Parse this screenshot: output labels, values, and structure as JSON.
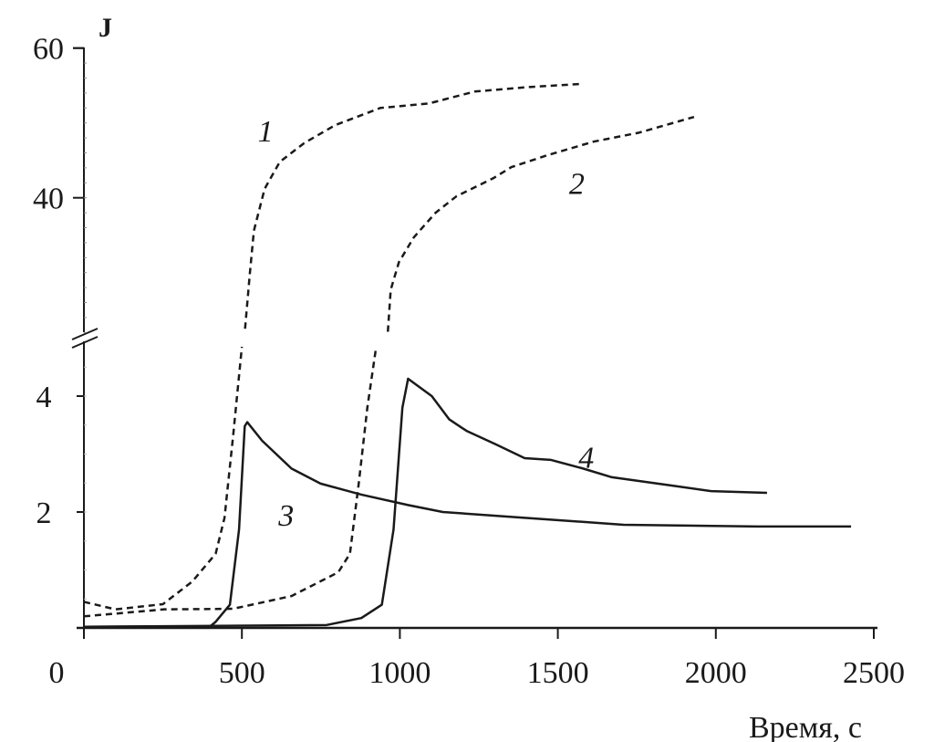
{
  "chart_data": {
    "type": "line",
    "title": "",
    "xlabel": "Время, с",
    "ylabel": "J",
    "xlim": [
      0,
      2500
    ],
    "ylim_lower": [
      0,
      5
    ],
    "ylim_upper": [
      21,
      60
    ],
    "y_axis_break": true,
    "grid": false,
    "x_ticks": [
      "0",
      "500",
      "1000",
      "1500",
      "2000",
      "2500"
    ],
    "x_tick_values": [
      0,
      500,
      1000,
      1500,
      2000,
      2500
    ],
    "y_ticks_lower": [
      "2",
      "4"
    ],
    "y_tick_values_lower": [
      2,
      4
    ],
    "y_ticks_upper": [
      "40",
      "60"
    ],
    "y_tick_values_upper": [
      40,
      60
    ],
    "series": [
      {
        "name": "1",
        "style": "dashed",
        "label_at": [
          575,
          49
        ],
        "x": [
          0,
          100,
          250,
          343,
          417,
          445,
          472,
          500,
          510,
          525,
          538,
          572,
          620,
          697,
          795,
          938,
          1092,
          1237,
          1410,
          1570
        ],
        "y": [
          0.45,
          0.32,
          0.41,
          0.8,
          1.28,
          1.9,
          3.3,
          4.85,
          22.5,
          29.8,
          35.6,
          41.2,
          44.8,
          47.3,
          49.7,
          52.0,
          52.6,
          54.2,
          54.8,
          55.2
        ]
      },
      {
        "name": "2",
        "style": "dashed",
        "label_at": [
          1560,
          42
        ],
        "x": [
          0,
          254,
          472,
          657,
          805,
          842,
          870,
          897,
          925,
          962,
          971,
          997,
          1044,
          1113,
          1179,
          1295,
          1353,
          1468,
          1613,
          1757,
          1931
        ],
        "y": [
          0.2,
          0.32,
          0.33,
          0.55,
          0.96,
          1.28,
          2.5,
          3.8,
          4.85,
          22.1,
          27.7,
          31.4,
          34.7,
          38.0,
          40.2,
          42.6,
          44.1,
          45.7,
          47.5,
          48.7,
          50.8
        ]
      },
      {
        "name": "3",
        "style": "solid",
        "label_at": [
          640,
          1.95
        ],
        "x": [
          0,
          400,
          416,
          462,
          491,
          509,
          517,
          564,
          657,
          749,
          878,
          1026,
          1136,
          1395,
          1708,
          2133,
          2428
        ],
        "y": [
          0.02,
          0.03,
          0.1,
          0.4,
          1.7,
          3.48,
          3.55,
          3.23,
          2.75,
          2.49,
          2.3,
          2.12,
          2.0,
          1.9,
          1.78,
          1.75,
          1.75
        ]
      },
      {
        "name": "4",
        "style": "solid",
        "label_at": [
          1590,
          2.95
        ],
        "x": [
          0,
          768,
          878,
          943,
          980,
          1008,
          1026,
          1101,
          1156,
          1211,
          1303,
          1395,
          1477,
          1580,
          1671,
          1855,
          1985,
          2162
        ],
        "y": [
          0.02,
          0.05,
          0.17,
          0.4,
          1.7,
          3.8,
          4.3,
          4.0,
          3.6,
          3.4,
          3.17,
          2.93,
          2.9,
          2.75,
          2.6,
          2.46,
          2.36,
          2.33
        ]
      }
    ],
    "color": "#1a1a1a"
  }
}
